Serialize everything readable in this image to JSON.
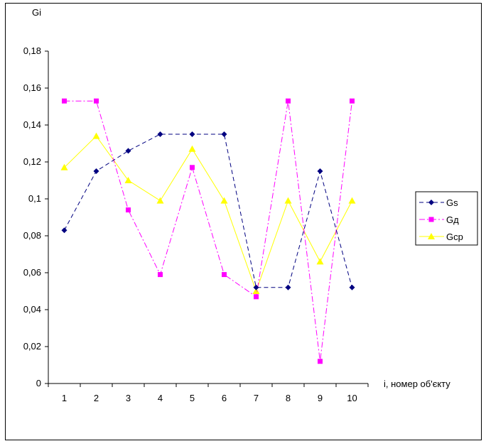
{
  "chart_data": {
    "type": "line",
    "ylabel": "Gi",
    "xlabel": "i, номер об'єкту",
    "x": [
      1,
      2,
      3,
      4,
      5,
      6,
      7,
      8,
      9,
      10
    ],
    "ylim": [
      0,
      0.18
    ],
    "yticks": [
      "0",
      "0,02",
      "0,04",
      "0,06",
      "0,08",
      "0,1",
      "0,12",
      "0,14",
      "0,16",
      "0,18"
    ],
    "xticks": [
      "1",
      "2",
      "3",
      "4",
      "5",
      "6",
      "7",
      "8",
      "9",
      "10"
    ],
    "grid": false,
    "legend_position": "right",
    "series": [
      {
        "name": "Gs",
        "color": "#000080",
        "marker": "diamond",
        "dash": "dashed",
        "values": [
          0.083,
          0.115,
          0.126,
          0.135,
          0.135,
          0.135,
          0.052,
          0.052,
          0.115,
          0.052
        ]
      },
      {
        "name": "Gд",
        "color": "#ff00ff",
        "marker": "square",
        "dash": "dashdot",
        "values": [
          0.153,
          0.153,
          0.094,
          0.059,
          0.117,
          0.059,
          0.047,
          0.153,
          0.012,
          0.153
        ]
      },
      {
        "name": "Gcp",
        "color": "#ffff00",
        "marker": "triangle",
        "dash": "solid",
        "values": [
          0.117,
          0.134,
          0.11,
          0.099,
          0.127,
          0.099,
          0.05,
          0.099,
          0.066,
          0.099
        ]
      }
    ]
  }
}
